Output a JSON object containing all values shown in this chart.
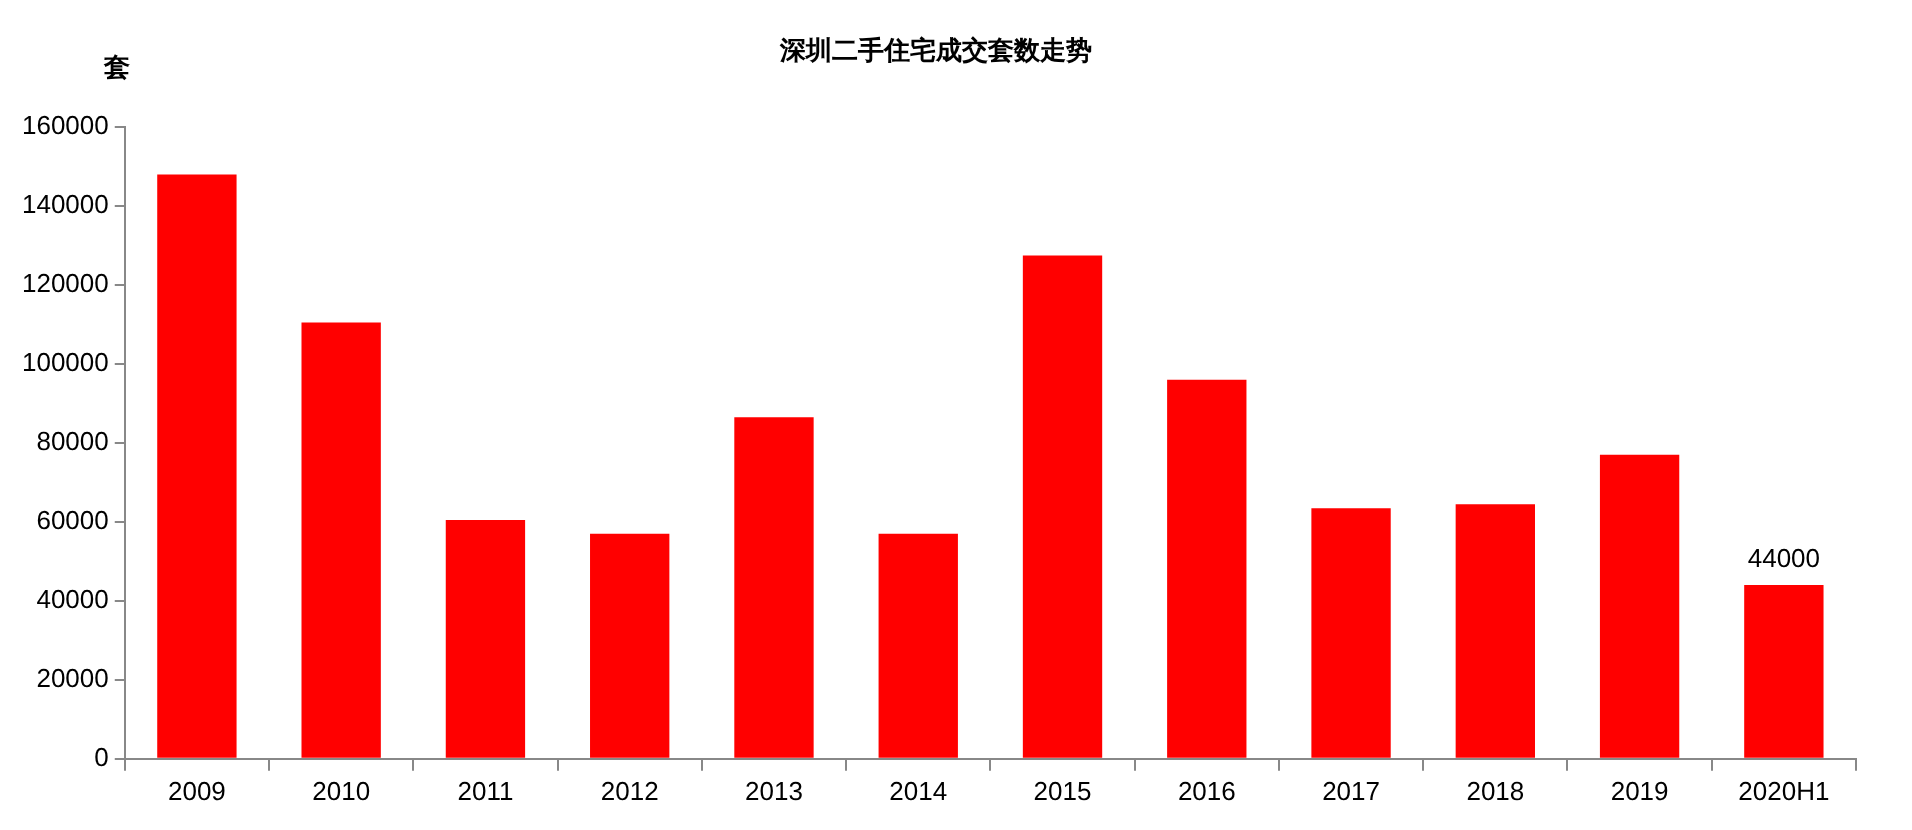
{
  "chart_data": {
    "type": "bar",
    "title": "深圳二手住宅成交套数走势",
    "ylabel": "套",
    "categories": [
      "2009",
      "2010",
      "2011",
      "2012",
      "2013",
      "2014",
      "2015",
      "2016",
      "2017",
      "2018",
      "2019",
      "2020H1"
    ],
    "values": [
      148000,
      110500,
      60500,
      57000,
      86500,
      57000,
      127500,
      96000,
      63500,
      64500,
      77000,
      44000
    ],
    "value_labels": [
      null,
      null,
      null,
      null,
      null,
      null,
      null,
      null,
      null,
      null,
      null,
      "44000"
    ],
    "color": "#ff0000",
    "ylim": [
      0,
      160000
    ],
    "yticks": [
      0,
      20000,
      40000,
      60000,
      80000,
      100000,
      120000,
      140000,
      160000
    ],
    "grid": false,
    "legend": false
  }
}
